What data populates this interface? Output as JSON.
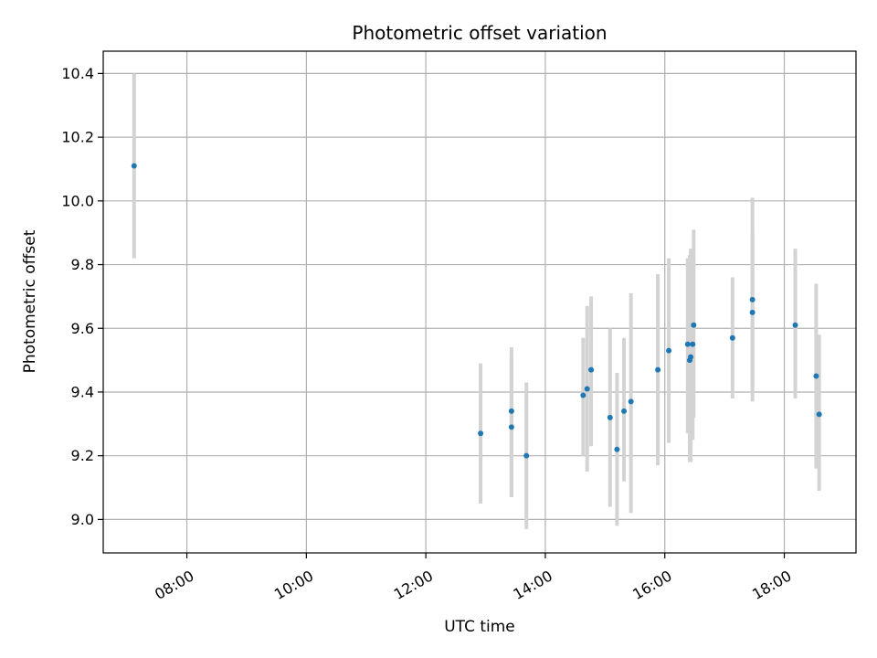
{
  "chart_data": {
    "type": "scatter",
    "title": "Photometric offset variation",
    "xlabel": "UTC time",
    "ylabel": "Photometric offset",
    "x_tick_labels": [
      "08:00",
      "10:00",
      "12:00",
      "14:00",
      "16:00",
      "18:00"
    ],
    "x_ticks_hours": [
      8,
      10,
      12,
      14,
      16,
      18
    ],
    "x_range_hours": [
      6.6,
      19.2
    ],
    "y_ticks": [
      9.0,
      9.2,
      9.4,
      9.6,
      9.8,
      10.0,
      10.2,
      10.4
    ],
    "y_tick_labels": [
      "9.0",
      "9.2",
      "9.4",
      "9.6",
      "9.8",
      "10.0",
      "10.2",
      "10.4"
    ],
    "ylim": [
      8.895,
      10.47
    ],
    "grid": true,
    "point_color": "#1f77b4",
    "errorbar_color": "#d3d3d3",
    "points": [
      {
        "time": "07:07",
        "y": 10.11,
        "lo": 9.82,
        "hi": 10.4
      },
      {
        "time": "12:55",
        "y": 9.27,
        "lo": 9.05,
        "hi": 9.49
      },
      {
        "time": "13:26",
        "y": 9.34,
        "lo": 9.07,
        "hi": 9.54
      },
      {
        "time": "13:26",
        "y": 9.29,
        "lo": 9.07,
        "hi": 9.51
      },
      {
        "time": "13:41",
        "y": 9.2,
        "lo": 8.97,
        "hi": 9.43
      },
      {
        "time": "14:38",
        "y": 9.39,
        "lo": 9.2,
        "hi": 9.57
      },
      {
        "time": "14:42",
        "y": 9.41,
        "lo": 9.15,
        "hi": 9.67
      },
      {
        "time": "14:46",
        "y": 9.47,
        "lo": 9.23,
        "hi": 9.7
      },
      {
        "time": "15:05",
        "y": 9.32,
        "lo": 9.04,
        "hi": 9.6
      },
      {
        "time": "15:12",
        "y": 9.22,
        "lo": 8.98,
        "hi": 9.46
      },
      {
        "time": "15:19",
        "y": 9.34,
        "lo": 9.12,
        "hi": 9.57
      },
      {
        "time": "15:26",
        "y": 9.37,
        "lo": 9.02,
        "hi": 9.71
      },
      {
        "time": "15:53",
        "y": 9.47,
        "lo": 9.17,
        "hi": 9.77
      },
      {
        "time": "16:04",
        "y": 9.53,
        "lo": 9.24,
        "hi": 9.82
      },
      {
        "time": "16:23",
        "y": 9.55,
        "lo": 9.27,
        "hi": 9.82
      },
      {
        "time": "16:25",
        "y": 9.5,
        "lo": 9.18,
        "hi": 9.83
      },
      {
        "time": "16:26",
        "y": 9.51,
        "lo": 9.18,
        "hi": 9.85
      },
      {
        "time": "16:28",
        "y": 9.55,
        "lo": 9.25,
        "hi": 9.85
      },
      {
        "time": "16:29",
        "y": 9.61,
        "lo": 9.32,
        "hi": 9.91
      },
      {
        "time": "17:08",
        "y": 9.57,
        "lo": 9.38,
        "hi": 9.76
      },
      {
        "time": "17:28",
        "y": 9.69,
        "lo": 9.37,
        "hi": 10.01
      },
      {
        "time": "17:28",
        "y": 9.65,
        "lo": 9.4,
        "hi": 9.9
      },
      {
        "time": "18:11",
        "y": 9.61,
        "lo": 9.38,
        "hi": 9.85
      },
      {
        "time": "18:32",
        "y": 9.45,
        "lo": 9.16,
        "hi": 9.74
      },
      {
        "time": "18:35",
        "y": 9.33,
        "lo": 9.09,
        "hi": 9.58
      }
    ]
  }
}
